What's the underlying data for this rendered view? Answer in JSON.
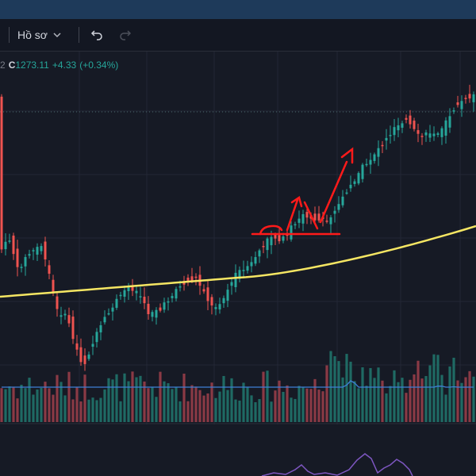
{
  "toolbar": {
    "profile_label": "Hồ sơ",
    "profile_chevron_icon": "chevron-down-icon",
    "undo_icon": "undo-icon",
    "redo_icon": "redo-icon"
  },
  "legend": {
    "prefix_fragment": "2",
    "close_label": "C",
    "close_value": "1273.11",
    "change": "+4.33",
    "change_pct": "(+0.34%)"
  },
  "colors": {
    "background": "#161a25",
    "up": "#26a69a",
    "down": "#ef5350",
    "ma_line": "#f5e663",
    "volume_ma": "#3f7fd6",
    "oscillator": "#7e57c2",
    "annotation": "#ff1a1a"
  }
}
